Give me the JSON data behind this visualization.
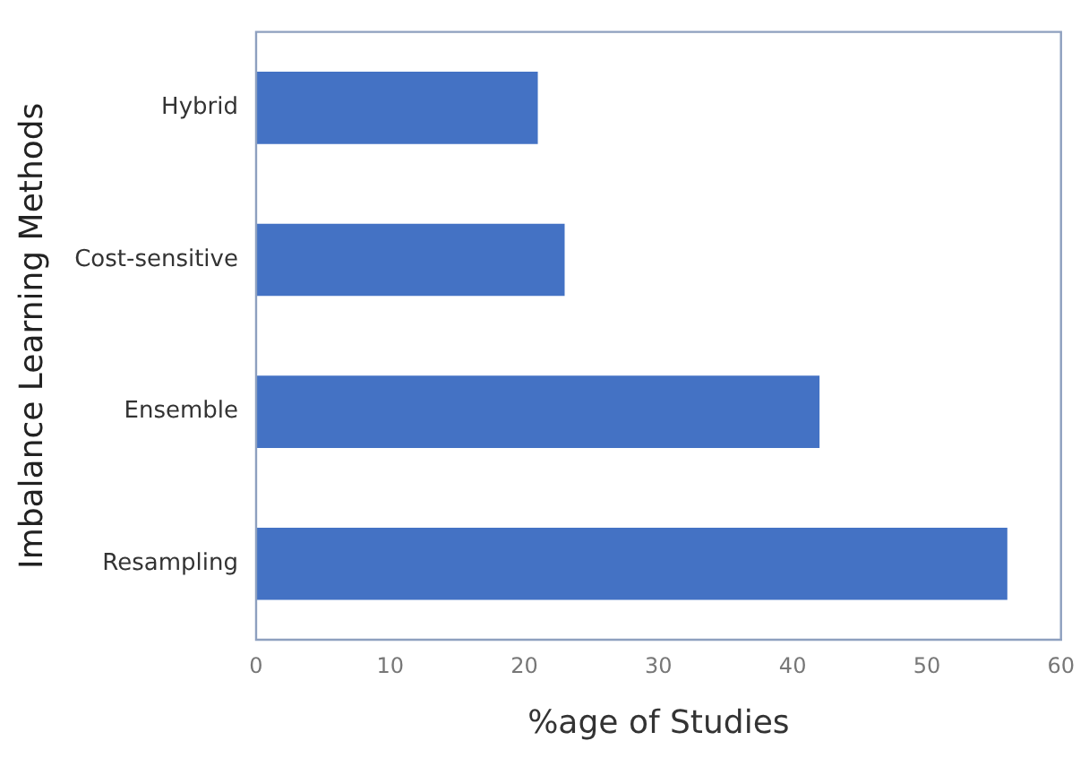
{
  "chart_data": {
    "type": "bar",
    "orientation": "horizontal",
    "categories": [
      "Hybrid",
      "Cost-sensitive",
      "Ensemble",
      "Resampling"
    ],
    "values": [
      21,
      23,
      42,
      56
    ],
    "color": "#4472c4",
    "xlabel": "%age of Studies",
    "ylabel": "Imbalance Learning Methods",
    "xlim": [
      0,
      60
    ],
    "xticks": [
      0,
      10,
      20,
      30,
      40,
      50,
      60
    ],
    "grid": false,
    "legend": false
  }
}
